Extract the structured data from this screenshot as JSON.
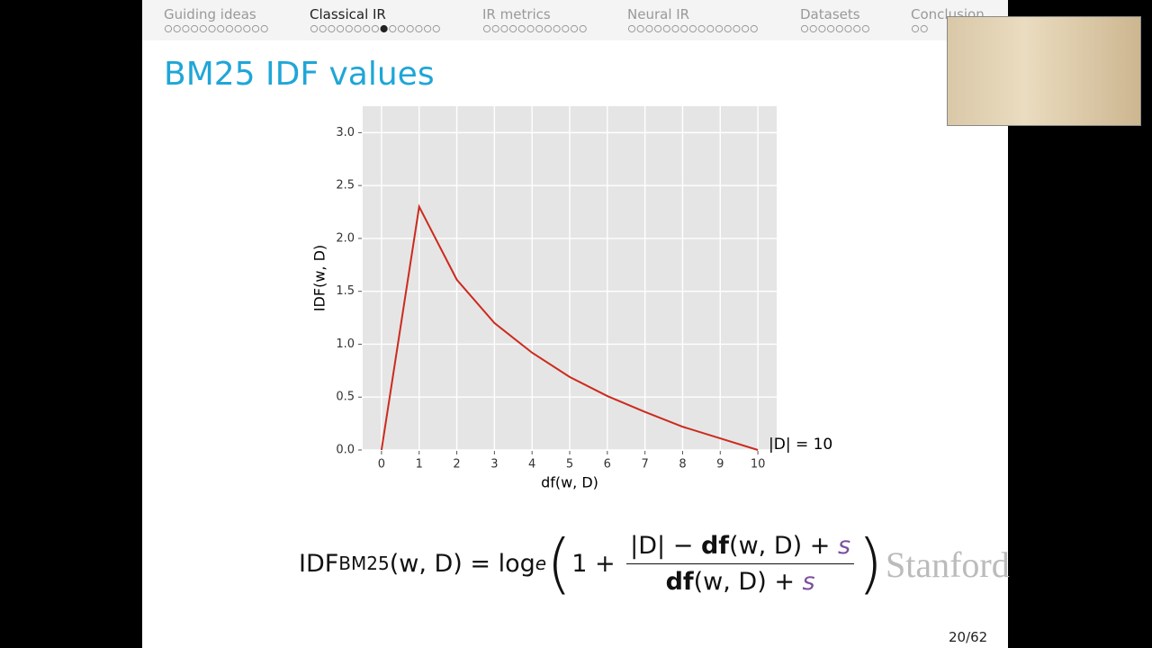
{
  "nav": [
    {
      "label": "Guiding ideas",
      "dots": 12
    },
    {
      "label": "Classical IR",
      "dots": 15,
      "current": 8
    },
    {
      "label": "IR metrics",
      "dots": 12
    },
    {
      "label": "Neural IR",
      "dots": 15
    },
    {
      "label": "Datasets",
      "dots": 8
    },
    {
      "label": "Conclusion",
      "dots": 2
    }
  ],
  "slide_title": "BM25 IDF values",
  "chart_data": {
    "type": "line",
    "x_label": "df(w, D)",
    "y_label": "IDF(w, D)",
    "x": [
      0,
      1,
      2,
      3,
      4,
      5,
      6,
      7,
      8,
      9,
      10
    ],
    "series": [
      {
        "color": "#cc2a1e",
        "values": [
          0,
          2.3,
          1.61,
          1.2,
          0.92,
          0.69,
          0.51,
          0.36,
          0.22,
          0.11,
          0
        ]
      }
    ],
    "xlim": [
      -0.5,
      10.5
    ],
    "ylim": [
      0,
      3.25
    ],
    "xticks": [
      0,
      1,
      2,
      3,
      4,
      5,
      6,
      7,
      8,
      9,
      10
    ],
    "yticks": [
      {
        "value": 0,
        "label": "0.0"
      },
      {
        "value": 0.5,
        "label": "0.5"
      },
      {
        "value": 1,
        "label": "1.0"
      },
      {
        "value": 1.5,
        "label": "1.5"
      },
      {
        "value": 2,
        "label": "2.0"
      },
      {
        "value": 2.5,
        "label": "2.5"
      },
      {
        "value": 3,
        "label": "3.0"
      }
    ],
    "grid": true,
    "annotation": "|D| = 10"
  },
  "formula": {
    "lhs": "IDF",
    "sub": "BM25",
    "args": "(w, D) = log",
    "base": "e",
    "num": [
      "|D| − ",
      "df",
      "(w, D) + ",
      "s"
    ],
    "den": [
      "df",
      "(w, D) + ",
      "s"
    ]
  },
  "logo": "Stanford",
  "page": "20/62"
}
